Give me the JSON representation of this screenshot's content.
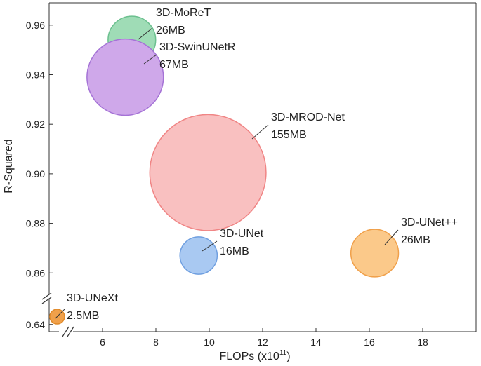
{
  "chart_data": {
    "type": "scatter",
    "subtype": "bubble",
    "title": "",
    "xlabel": "FLOPs (x10",
    "xlabel_sup": "11",
    "xlabel_close": ")",
    "ylabel": "R-Squared",
    "xlim": [
      4.0,
      20.0
    ],
    "ylim_upper": [
      0.853,
      0.969
    ],
    "ylim_lower": [
      0.635,
      0.655
    ],
    "y_axis_break": true,
    "x_axis_break": true,
    "x_ticks": [
      6,
      8,
      10,
      12,
      14,
      16,
      18
    ],
    "x_tick_labels": [
      "6",
      "8",
      "10",
      "12",
      "14",
      "16",
      "18"
    ],
    "y_ticks_upper": [
      0.86,
      0.88,
      0.9,
      0.92,
      0.94,
      0.96
    ],
    "y_tick_labels_upper": [
      "0.86",
      "0.88",
      "0.90",
      "0.92",
      "0.94",
      "0.96"
    ],
    "y_ticks_lower": [
      0.64
    ],
    "y_tick_labels_lower": [
      "0.64"
    ],
    "points": [
      {
        "name": "3D-MoReT",
        "size": "26MB",
        "size_mb": 26,
        "x": 7.1,
        "y": 0.954,
        "color": "#9fdcb6",
        "stroke": "#6cc08f"
      },
      {
        "name": "3D-SwinUNetR",
        "size": "67MB",
        "size_mb": 67,
        "x": 6.85,
        "y": 0.939,
        "color": "#cfa8ea",
        "stroke": "#a573d6"
      },
      {
        "name": "3D-MROD-Net",
        "size": "155MB",
        "size_mb": 155,
        "x": 9.95,
        "y": 0.9005,
        "color": "#f9c0c0",
        "stroke": "#f08585"
      },
      {
        "name": "3D-UNet",
        "size": "16MB",
        "size_mb": 16,
        "x": 9.6,
        "y": 0.867,
        "color": "#a9c9f2",
        "stroke": "#6f9fe0"
      },
      {
        "name": "3D-UNet++",
        "size": "26MB",
        "size_mb": 26,
        "x": 16.2,
        "y": 0.868,
        "color": "#fbc98a",
        "stroke": "#f0a04a"
      },
      {
        "name": "3D-UNeXt",
        "size": "2.5MB",
        "size_mb": 2.5,
        "x": 4.3,
        "y": 0.6455,
        "color": "#f0a04a",
        "stroke": "#e08a2a"
      }
    ]
  }
}
